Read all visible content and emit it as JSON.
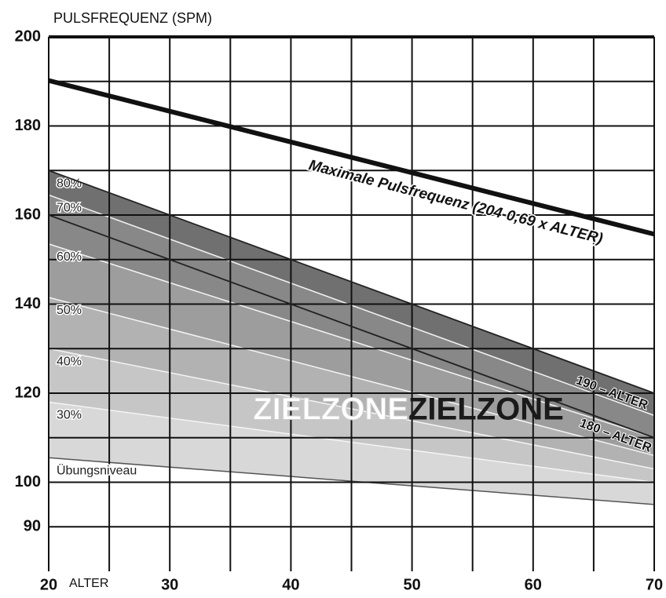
{
  "chart_data": {
    "type": "line",
    "y_label": "PULSFREQUENZ (SPM)",
    "x_label": "ALTER",
    "xlim": [
      20,
      70
    ],
    "ylim": [
      80,
      200
    ],
    "xticks": [
      20,
      30,
      40,
      50,
      60,
      70
    ],
    "yticks": [
      90,
      100,
      120,
      140,
      160,
      180,
      200
    ],
    "xgrid": [
      20,
      25,
      30,
      35,
      40,
      45,
      50,
      55,
      60,
      65,
      70
    ],
    "ygrid": [
      90,
      100,
      110,
      120,
      130,
      140,
      150,
      160,
      170,
      180,
      190,
      200
    ],
    "series": [
      {
        "name": "Maximale Pulsfrequenz (204-0,69 x ALTER)",
        "color": "#111111",
        "x": [
          20,
          70
        ],
        "values": [
          190.2,
          155.7
        ]
      },
      {
        "name": "190 – ALTER",
        "color": "#222222",
        "x": [
          20,
          70
        ],
        "values": [
          170,
          120
        ]
      },
      {
        "name": "180 – ALTER",
        "color": "#222222",
        "x": [
          20,
          70
        ],
        "values": [
          160,
          110
        ]
      }
    ],
    "zone_x": [
      20,
      70
    ],
    "zones": [
      {
        "label": "80%",
        "color": "#707070",
        "values": [
          170,
          120
        ]
      },
      {
        "label": "70%",
        "color": "#888888",
        "values": [
          164.5,
          115
        ]
      },
      {
        "label": "60%",
        "color": "#9d9d9d",
        "values": [
          153.5,
          110
        ]
      },
      {
        "label": "50%",
        "color": "#b2b2b2",
        "values": [
          141.5,
          106
        ]
      },
      {
        "label": "40%",
        "color": "#c6c6c6",
        "values": [
          130,
          103
        ]
      },
      {
        "label": "30%",
        "color": "#d8d8d8",
        "values": [
          118,
          100
        ]
      },
      {
        "label": "Übungsniveau",
        "color": "#e8e8e8",
        "values": [
          105.5,
          95
        ]
      }
    ],
    "zone_title": "ZIELZONE"
  }
}
